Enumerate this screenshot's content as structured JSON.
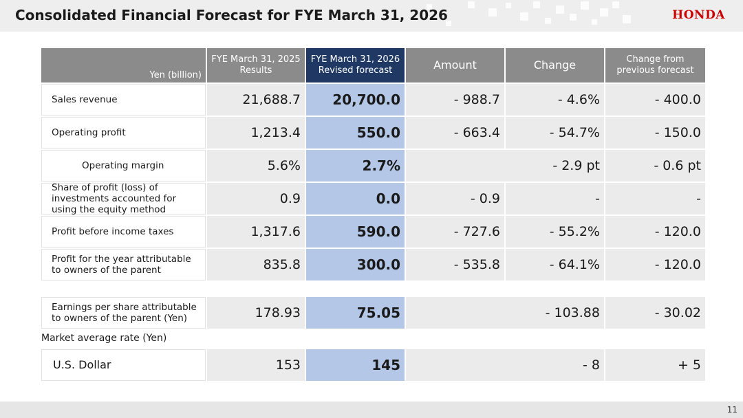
{
  "header": {
    "title": "Consolidated Financial Forecast for FYE March 31, 2026",
    "logo": "HONDA"
  },
  "table": {
    "columns": {
      "label": "Yen (billion)",
      "results": "FYE March 31, 2025\nResults",
      "revised": "FYE March 31, 2026\nRevised forecast",
      "amount": "Amount",
      "change": "Change",
      "previous": "Change from\nprevious forecast"
    },
    "rows": [
      {
        "label": "Sales revenue",
        "results": "21,688.7",
        "revised": "20,700.0",
        "amount": "- 988.7",
        "change": "- 4.6%",
        "previous": "- 400.0"
      },
      {
        "label": "Operating profit",
        "results": "1,213.4",
        "revised": "550.0",
        "amount": "- 663.4",
        "change": "- 54.7%",
        "previous": "- 150.0"
      },
      {
        "label": "Operating margin",
        "results": "5.6%",
        "revised": "2.7%",
        "amount_change": "- 2.9 pt",
        "previous": "- 0.6 pt"
      },
      {
        "label": "Share of profit (loss) of investments accounted for using the equity method",
        "results": "0.9",
        "revised": "0.0",
        "amount": "- 0.9",
        "change": "-",
        "previous": "-"
      },
      {
        "label": "Profit before income taxes",
        "results": "1,317.6",
        "revised": "590.0",
        "amount": "- 727.6",
        "change": "- 55.2%",
        "previous": "- 120.0"
      },
      {
        "label": "Profit for the year attributable to owners of the parent",
        "results": "835.8",
        "revised": "300.0",
        "amount": "- 535.8",
        "change": "- 64.1%",
        "previous": "- 120.0"
      }
    ],
    "eps": {
      "label": "Earnings per share attributable to owners of the parent (Yen)",
      "results": "178.93",
      "revised": "75.05",
      "amount_change": "- 103.88",
      "previous": "- 30.02"
    },
    "market_label": "Market average rate (Yen)",
    "usd": {
      "label": "U.S. Dollar",
      "results": "153",
      "revised": "145",
      "amount_change": "- 8",
      "previous": "+ 5"
    }
  },
  "footer": {
    "page": "11"
  },
  "colors": {
    "header_grey": "#8b8b8b",
    "header_navy": "#1f3864",
    "revised_blue": "#b4c7e7",
    "cell_grey": "#ebebeb",
    "brand_red": "#cc0000"
  }
}
